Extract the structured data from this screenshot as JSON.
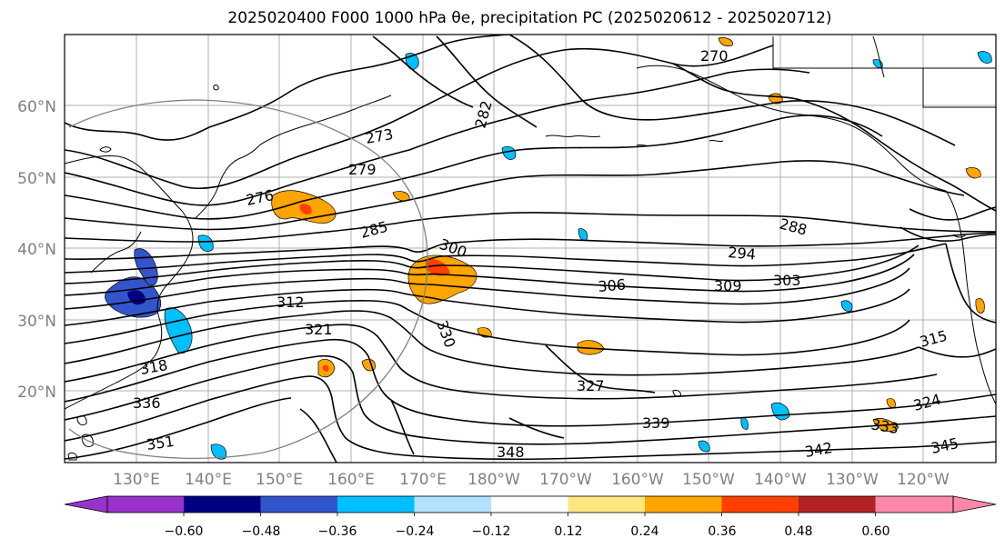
{
  "title": "2025020400 F000 1000 hPa θe, precipitation PC (2025020612 - 2025020712)",
  "lat_labels": [
    "60°N",
    "50°N",
    "40°N",
    "30°N",
    "20°N"
  ],
  "lon_labels": [
    "130°E",
    "140°E",
    "150°E",
    "160°E",
    "170°E",
    "180°W",
    "170°W",
    "160°W",
    "150°W",
    "140°W",
    "130°W",
    "120°W"
  ],
  "contour_labels": [
    "270",
    "273",
    "276",
    "279",
    "282",
    "285",
    "288",
    "294",
    "300",
    "303",
    "306",
    "309",
    "312",
    "315",
    "318",
    "321",
    "324",
    "327",
    "330",
    "333",
    "336",
    "339",
    "342",
    "345",
    "348",
    "351"
  ],
  "colorbar": {
    "ticks": [
      "−0.60",
      "−0.48",
      "−0.36",
      "−0.24",
      "−0.12",
      "0.12",
      "0.24",
      "0.36",
      "0.48",
      "0.60"
    ],
    "colors": [
      "#9933cc",
      "#000080",
      "#3355cc",
      "#00bfff",
      "#b0e2ff",
      "#ffffff",
      "#ffe680",
      "#ffa500",
      "#ff4000",
      "#b22222",
      "#ff88aa"
    ]
  }
}
